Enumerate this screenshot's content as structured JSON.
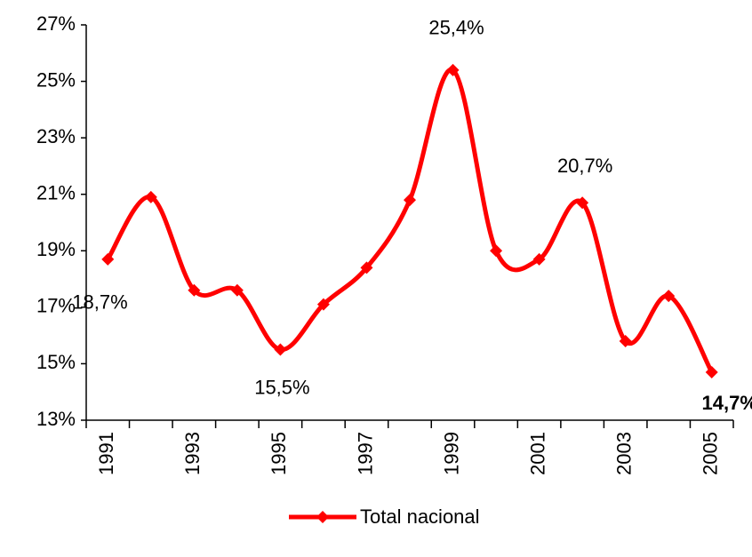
{
  "chart_data": {
    "type": "line",
    "categories": [
      "1991",
      null,
      "1993",
      null,
      "1995",
      null,
      "1997",
      null,
      "1999",
      null,
      "2001",
      null,
      "2003",
      null,
      "2005"
    ],
    "series": [
      {
        "name": "Total nacional",
        "color": "#ff0000",
        "values": [
          18.7,
          20.9,
          17.6,
          17.6,
          15.5,
          17.1,
          18.4,
          20.8,
          25.4,
          19.0,
          18.7,
          20.7,
          15.8,
          17.4,
          14.7
        ],
        "value_labels": [
          "18,7%",
          null,
          null,
          null,
          "15,5%",
          null,
          null,
          null,
          "25,4%",
          null,
          null,
          "20,7%",
          null,
          null,
          "14,7%"
        ]
      }
    ],
    "ylim": [
      13,
      27
    ],
    "yticks": [
      {
        "value": 13,
        "label": "13%"
      },
      {
        "value": 15,
        "label": "15%"
      },
      {
        "value": 17,
        "label": "17%"
      },
      {
        "value": 19,
        "label": "19%"
      },
      {
        "value": 21,
        "label": "21%"
      },
      {
        "value": 23,
        "label": "23%"
      },
      {
        "value": 25,
        "label": "25%"
      },
      {
        "value": 27,
        "label": "27%"
      }
    ],
    "legend": "bottom"
  }
}
